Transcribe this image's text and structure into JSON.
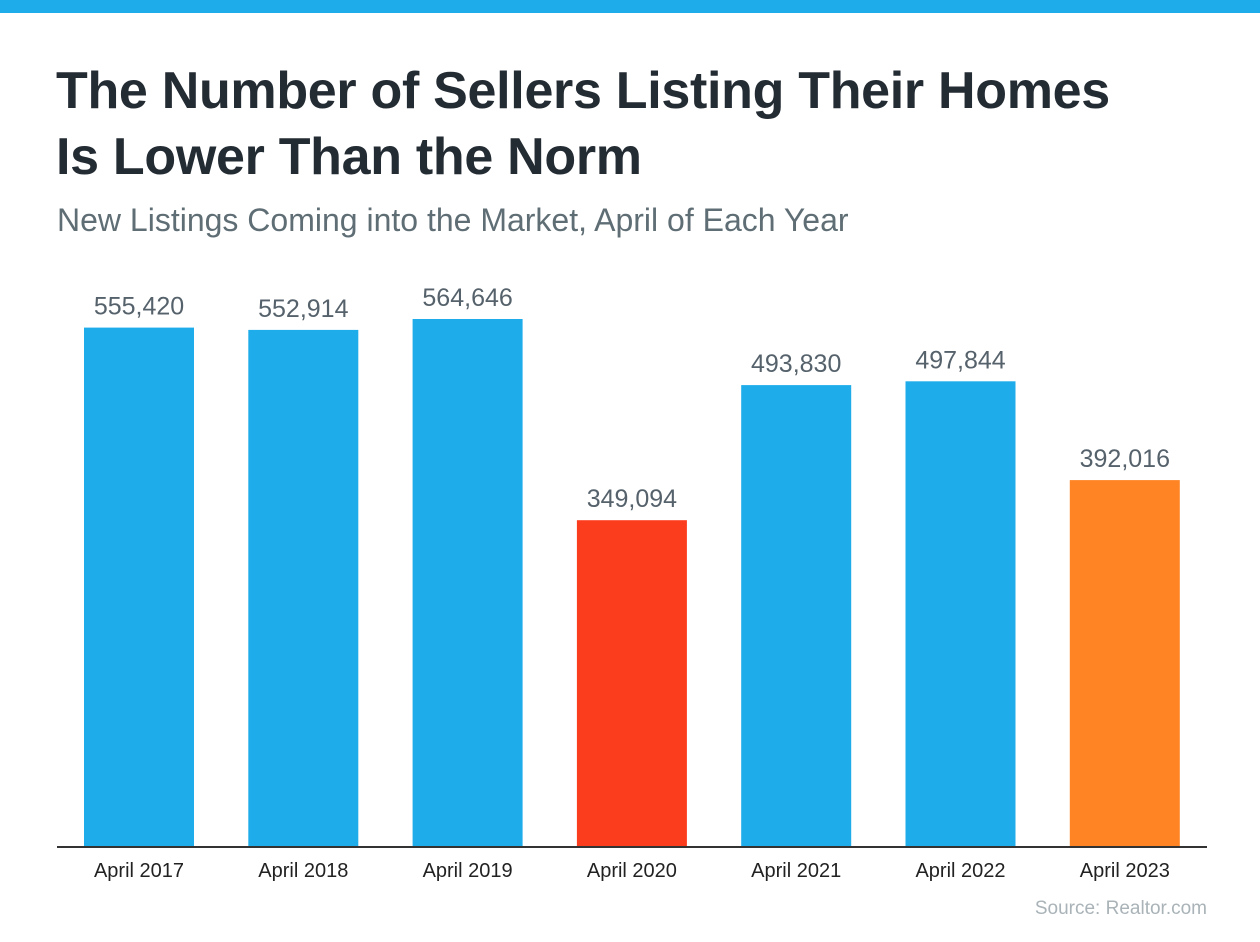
{
  "header": {
    "title_line1": "The Number of Sellers Listing Their Homes",
    "title_line2": "Is Lower Than the Norm",
    "subtitle": "New Listings Coming into the Market, April of Each Year"
  },
  "footer": {
    "source": "Source: Realtor.com"
  },
  "colors": {
    "accent": "#1eadea",
    "bar_default": "#1eadea",
    "bar_low": "#fb3d1e",
    "bar_recent": "#fe8424",
    "title": "#232b33",
    "subtitle": "#5f6e75",
    "value_label": "#56626b",
    "axis": "#333333"
  },
  "chart_data": {
    "type": "bar",
    "title": "The Number of Sellers Listing Their Homes Is Lower Than the Norm",
    "subtitle": "New Listings Coming into the Market, April of Each Year",
    "xlabel": "",
    "ylabel": "",
    "categories": [
      "April 2017",
      "April 2018",
      "April 2019",
      "April 2020",
      "April 2021",
      "April 2022",
      "April 2023"
    ],
    "values": [
      555420,
      552914,
      564646,
      349094,
      493830,
      497844,
      392016
    ],
    "value_labels": [
      "555,420",
      "552,914",
      "564,646",
      "349,094",
      "493,830",
      "497,844",
      "392,016"
    ],
    "bar_colors": [
      "#1eadea",
      "#1eadea",
      "#1eadea",
      "#fb3d1e",
      "#1eadea",
      "#1eadea",
      "#fe8424"
    ],
    "ylim": [
      0,
      564646
    ],
    "grid": false,
    "legend": "none"
  }
}
